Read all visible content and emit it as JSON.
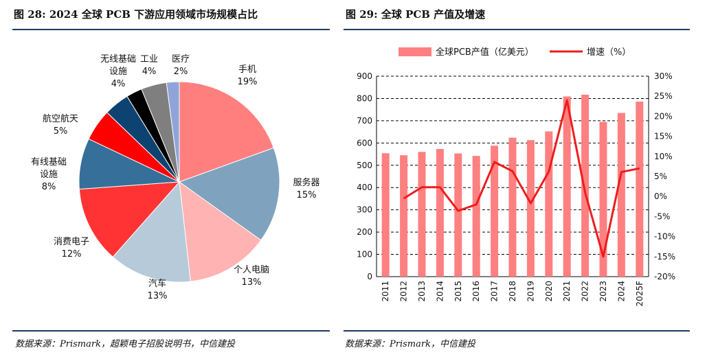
{
  "left_panel": {
    "title": "图 28: 2024 全球 PCB 下游应用领域市场规模占比",
    "source": "数据来源：Prismark，超颖电子招股说明书，中信建投"
  },
  "right_panel": {
    "title": "图 29:  全球 PCB 产值及增速",
    "source": "数据来源：Prismark，中信建投"
  },
  "chart_data": [
    {
      "type": "pie",
      "slices": [
        {
          "label": "手机",
          "label_lines": [
            "手机"
          ],
          "pct_label": "19%",
          "value": 19,
          "color": "#ff7f7f"
        },
        {
          "label": "服务器",
          "label_lines": [
            "服务器"
          ],
          "pct_label": "15%",
          "value": 15,
          "color": "#7fa3bf"
        },
        {
          "label": "个人电脑",
          "label_lines": [
            "个人电脑"
          ],
          "pct_label": "13%",
          "value": 13,
          "color": "#ffb3b3"
        },
        {
          "label": "汽车",
          "label_lines": [
            "汽车"
          ],
          "pct_label": "13%",
          "value": 13,
          "color": "#b7cad9"
        },
        {
          "label": "消费电子",
          "label_lines": [
            "消费电子"
          ],
          "pct_label": "12%",
          "value": 12,
          "color": "#ff3333"
        },
        {
          "label": "有线基础设施",
          "label_lines": [
            "有线基础",
            "设施"
          ],
          "pct_label": "8%",
          "value": 8,
          "color": "#366f99"
        },
        {
          "label": "航空航天",
          "label_lines": [
            "航空航天"
          ],
          "pct_label": "5%",
          "value": 5,
          "color": "#ff0000"
        },
        {
          "label": "无线基础设施",
          "label_lines": [
            "无线基础",
            "设施"
          ],
          "pct_label": "4%",
          "value": 4,
          "color": "#0d4371"
        },
        {
          "label": "",
          "label_lines": [],
          "pct_label": "",
          "value": 2.5,
          "color": "#000000"
        },
        {
          "label": "工业",
          "label_lines": [
            "工业"
          ],
          "pct_label": "4%",
          "value": 4,
          "color": "#7f7f7f"
        },
        {
          "label": "医疗",
          "label_lines": [
            "医疗"
          ],
          "pct_label": "2%",
          "value": 2,
          "color": "#8fa5d9"
        }
      ]
    },
    {
      "type": "bar+line",
      "legend": [
        "全球PCB产值（亿美元）",
        "增速（%）"
      ],
      "categories": [
        "2011",
        "2012",
        "2013",
        "2014",
        "2015",
        "2016",
        "2017",
        "2018",
        "2019",
        "2020",
        "2021",
        "2022",
        "2023",
        "2024",
        "2025F"
      ],
      "series": [
        {
          "name": "全球PCB产值（亿美元）",
          "type": "bar",
          "axis": "left",
          "color": "#ff8080",
          "values": [
            554,
            545,
            560,
            573,
            553,
            542,
            588,
            624,
            613,
            652,
            809,
            817,
            695,
            735,
            786
          ]
        },
        {
          "name": "增速（%）",
          "type": "line",
          "axis": "right",
          "color": "#ee1c1c",
          "values": [
            null,
            -0.5,
            2.3,
            2.3,
            -3.6,
            -2.0,
            8.6,
            6.3,
            -1.7,
            6.2,
            24.0,
            1.0,
            -15.0,
            6.1,
            7.0
          ]
        }
      ],
      "y_left": {
        "min": 0,
        "max": 900,
        "ticks": [
          "0",
          "100",
          "200",
          "300",
          "400",
          "500",
          "600",
          "700",
          "800",
          "900"
        ]
      },
      "y_right": {
        "min": -20,
        "max": 30,
        "ticks": [
          "-20%",
          "-15%",
          "-10%",
          "-5%",
          "0%",
          "5%",
          "10%",
          "15%",
          "20%",
          "25%",
          "30%"
        ]
      },
      "gridlines": "dashed"
    }
  ]
}
